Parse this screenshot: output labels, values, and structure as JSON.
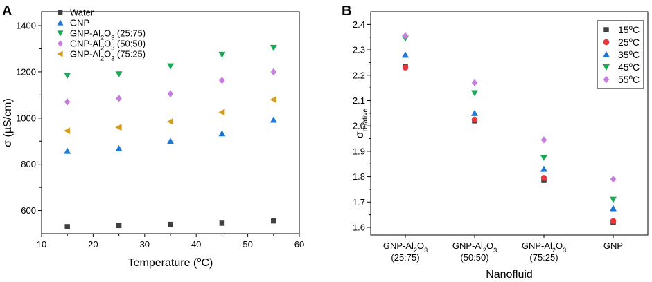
{
  "chart_data": [
    {
      "panel": "A",
      "type": "scatter",
      "xlabel": "Temperature (",
      "xlabel_sup": "o",
      "xlabel_end": "C)",
      "ylabel": "σ (µS/cm)",
      "xlim": [
        10,
        60
      ],
      "ylim": [
        500,
        1460
      ],
      "xticks": [
        10,
        20,
        30,
        40,
        50,
        60
      ],
      "yticks": [
        600,
        800,
        1000,
        1200,
        1400
      ],
      "legend_position": "top-left",
      "series": [
        {
          "name": "Water",
          "label_parts": [
            "Water"
          ],
          "color": "#404040",
          "marker": "square",
          "x": [
            15,
            25,
            35,
            45,
            55
          ],
          "y": [
            530,
            535,
            540,
            545,
            555
          ]
        },
        {
          "name": "GNP",
          "label_parts": [
            "GNP"
          ],
          "color": "#1f77d4",
          "marker": "triangle-up",
          "x": [
            15,
            25,
            35,
            45,
            55
          ],
          "y": [
            857,
            868,
            900,
            933,
            992
          ]
        },
        {
          "name": "GNP-Al2O3 (25:75)",
          "label_parts": [
            "GNP-Al",
            "2",
            "O",
            "3",
            " (25:75)"
          ],
          "color": "#1aaa55",
          "marker": "triangle-down",
          "x": [
            15,
            25,
            35,
            45,
            55
          ],
          "y": [
            1185,
            1190,
            1225,
            1275,
            1305
          ]
        },
        {
          "name": "GNP-Al2O3 (50:50)",
          "label_parts": [
            "GNP-Al",
            "2",
            "O",
            "3",
            " (50:50)"
          ],
          "color": "#c77ddd",
          "marker": "diamond",
          "x": [
            15,
            25,
            35,
            45,
            55
          ],
          "y": [
            1070,
            1085,
            1105,
            1163,
            1200
          ]
        },
        {
          "name": "GNP-Al2O3 (75:25)",
          "label_parts": [
            "GNP-Al",
            "2",
            "O",
            "3",
            " (75:25)"
          ],
          "color": "#d49a1a",
          "marker": "triangle-left",
          "x": [
            15,
            25,
            35,
            45,
            55
          ],
          "y": [
            945,
            960,
            985,
            1025,
            1080
          ]
        }
      ]
    },
    {
      "panel": "B",
      "type": "scatter",
      "xlabel": "Nanofluid",
      "ylabel": "σ",
      "ylabel_sub": "relative",
      "ylim": [
        1.57,
        2.45
      ],
      "yticks": [
        1.6,
        1.7,
        1.8,
        1.9,
        2.0,
        2.1,
        2.2,
        2.3,
        2.4
      ],
      "ytick_labels": [
        "1.6",
        "1.7",
        "1.8",
        "1.9",
        "2.0",
        "2.1",
        "2.2",
        "2.3",
        "2.4"
      ],
      "categories": [
        {
          "parts": [
            "GNP-Al",
            "2",
            "O",
            "3"
          ],
          "line2": "(25:75)"
        },
        {
          "parts": [
            "GNP-Al",
            "2",
            "O",
            "3"
          ],
          "line2": "(50:50)"
        },
        {
          "parts": [
            "GNP-Al",
            "2",
            "O",
            "3"
          ],
          "line2": "(75:25)"
        },
        {
          "parts": [
            "GNP"
          ],
          "line2": ""
        }
      ],
      "legend_position": "top-right",
      "series": [
        {
          "name": "15°C",
          "temp": "15",
          "sup": "o",
          "unit": "C",
          "color": "#404040",
          "marker": "square",
          "values": [
            2.235,
            2.02,
            1.785,
            1.62
          ]
        },
        {
          "name": "25°C",
          "temp": "25",
          "sup": "o",
          "unit": "C",
          "color": "#e8383d",
          "marker": "circle",
          "values": [
            2.23,
            2.025,
            1.795,
            1.625
          ]
        },
        {
          "name": "35°C",
          "temp": "35",
          "sup": "o",
          "unit": "C",
          "color": "#1f77d4",
          "marker": "triangle-up",
          "values": [
            2.28,
            2.05,
            1.83,
            1.675
          ]
        },
        {
          "name": "45°C",
          "temp": "45",
          "sup": "o",
          "unit": "C",
          "color": "#1aaa55",
          "marker": "triangle-down",
          "values": [
            2.345,
            2.13,
            1.875,
            1.71
          ]
        },
        {
          "name": "55°C",
          "temp": "55",
          "sup": "o",
          "unit": "C",
          "color": "#c77ddd",
          "marker": "diamond",
          "values": [
            2.355,
            2.17,
            1.945,
            1.79
          ]
        }
      ]
    }
  ]
}
